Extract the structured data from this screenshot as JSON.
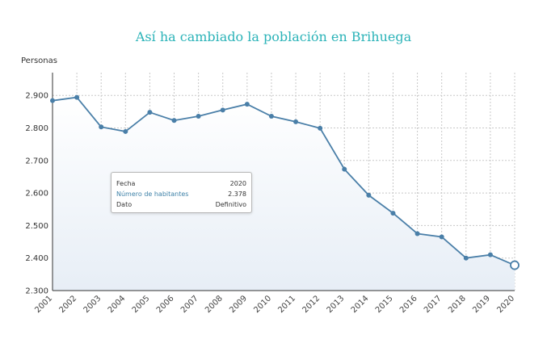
{
  "chart_data": {
    "type": "line",
    "title": "Así ha cambiado la población en Brihuega",
    "ylabel": "Personas",
    "xlabel": "",
    "x": [
      "2001",
      "2002",
      "2003",
      "2004",
      "2005",
      "2006",
      "2007",
      "2008",
      "2009",
      "2010",
      "2011",
      "2012",
      "2013",
      "2014",
      "2015",
      "2016",
      "2017",
      "2018",
      "2019",
      "2020"
    ],
    "series": [
      {
        "values": [
          2884,
          2894,
          2803,
          2789,
          2848,
          2823,
          2836,
          2855,
          2873,
          2836,
          2819,
          2799,
          2673,
          2593,
          2538,
          2475,
          2465,
          2400,
          2410,
          2378
        ]
      }
    ],
    "ylim": [
      2300,
      2970
    ],
    "yticks": [
      2300,
      2400,
      2500,
      2600,
      2700,
      2800,
      2900
    ],
    "ytick_labels": [
      "2.300",
      "2.400",
      "2.500",
      "2.600",
      "2.700",
      "2.800",
      "2.900"
    ],
    "grid": true,
    "line_color": "#4a7fa8",
    "area_top_color": "#ffffff",
    "area_bottom_color": "#e7eef6",
    "highlight_index": 19
  },
  "tooltip": {
    "rows": [
      {
        "key": "Fecha",
        "value": "2020"
      },
      {
        "key": "Número de habitantes",
        "value": "2.378"
      },
      {
        "key": "Dato",
        "value": "Definitivo"
      }
    ]
  }
}
